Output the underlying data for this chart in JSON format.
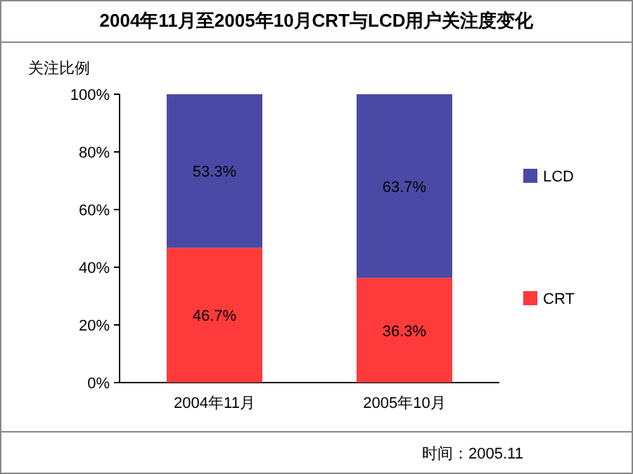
{
  "chart_data": {
    "type": "bar",
    "title": "2004年11月至2005年10月CRT与LCD用户关注度变化",
    "ylabel": "关注比例",
    "categories": [
      "2004年11月",
      "2005年10月"
    ],
    "stacked": true,
    "series": [
      {
        "name": "CRT",
        "color": "#ff3a3a",
        "values": [
          46.7,
          36.3
        ],
        "value_labels": [
          "46.7%",
          "36.3%"
        ]
      },
      {
        "name": "LCD",
        "color": "#4a4aa6",
        "values": [
          53.3,
          63.7
        ],
        "value_labels": [
          "53.3%",
          "63.7%"
        ]
      }
    ],
    "ylim": [
      0,
      100
    ],
    "yticks": [
      {
        "value": 0,
        "label": "0%"
      },
      {
        "value": 20,
        "label": "20%"
      },
      {
        "value": 40,
        "label": "40%"
      },
      {
        "value": 60,
        "label": "60%"
      },
      {
        "value": 80,
        "label": "80%"
      },
      {
        "value": 100,
        "label": "100%"
      }
    ],
    "legend": "right",
    "annotations": [
      "时间：2005.11"
    ]
  }
}
